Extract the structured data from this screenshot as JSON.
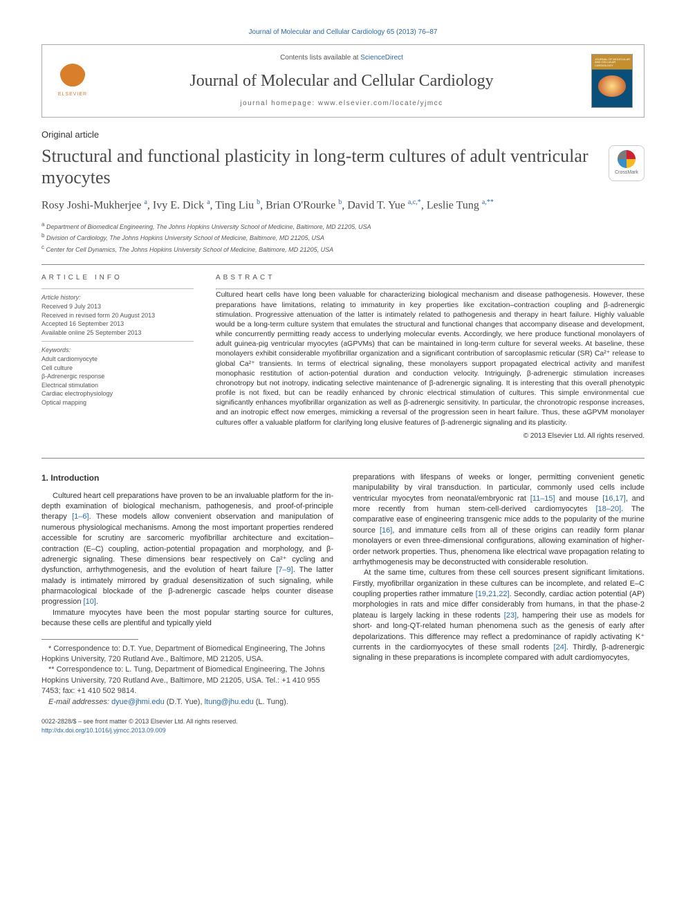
{
  "top_link": "Journal of Molecular and Cellular Cardiology 65 (2013) 76–87",
  "header": {
    "contents_prefix": "Contents lists available at ",
    "contents_site": "ScienceDirect",
    "journal_title": "Journal of Molecular and Cellular Cardiology",
    "homepage": "journal homepage: www.elsevier.com/locate/yjmcc",
    "elsevier": "ELSEVIER",
    "cover_label": "JOURNAL OF MOLECULAR AND CELLULAR CARDIOLOGY"
  },
  "article_type": "Original article",
  "title": "Structural and functional plasticity in long-term cultures of adult ventricular myocytes",
  "crossmark": "CrossMark",
  "authors_html": "Rosy Joshi-Mukherjee <sup>a</sup>, Ivy E. Dick <sup>a</sup>, Ting Liu <sup>b</sup>, Brian O'Rourke <sup>b</sup>, David T. Yue <sup>a,c,*</sup>, Leslie Tung <sup>a,**</sup>",
  "affiliations": [
    {
      "sup": "a",
      "text": "Department of Biomedical Engineering, The Johns Hopkins University School of Medicine, Baltimore, MD 21205, USA"
    },
    {
      "sup": "b",
      "text": "Division of Cardiology, The Johns Hopkins University School of Medicine, Baltimore, MD 21205, USA"
    },
    {
      "sup": "c",
      "text": "Center for Cell Dynamics, The Johns Hopkins University School of Medicine, Baltimore, MD 21205, USA"
    }
  ],
  "info": {
    "label": "ARTICLE INFO",
    "history_label": "Article history:",
    "received": "Received 9 July 2013",
    "revised": "Received in revised form 20 August 2013",
    "accepted": "Accepted 16 September 2013",
    "online": "Available online 25 September 2013",
    "keywords_label": "Keywords:",
    "keywords": [
      "Adult cardiomyocyte",
      "Cell culture",
      "β-Adrenergic response",
      "Electrical stimulation",
      "Cardiac electrophysiology",
      "Optical mapping"
    ]
  },
  "abstract": {
    "label": "ABSTRACT",
    "text": "Cultured heart cells have long been valuable for characterizing biological mechanism and disease pathogenesis. However, these preparations have limitations, relating to immaturity in key properties like excitation–contraction coupling and β-adrenergic stimulation. Progressive attenuation of the latter is intimately related to pathogenesis and therapy in heart failure. Highly valuable would be a long-term culture system that emulates the structural and functional changes that accompany disease and development, while concurrently permitting ready access to underlying molecular events. Accordingly, we here produce functional monolayers of adult guinea-pig ventricular myocytes (aGPVMs) that can be maintained in long-term culture for several weeks. At baseline, these monolayers exhibit considerable myofibrillar organization and a significant contribution of sarcoplasmic reticular (SR) Ca²⁺ release to global Ca²⁺ transients. In terms of electrical signaling, these monolayers support propagated electrical activity and manifest monophasic restitution of action-potential duration and conduction velocity. Intriguingly, β-adrenergic stimulation increases chronotropy but not inotropy, indicating selective maintenance of β-adrenergic signaling. It is interesting that this overall phenotypic profile is not fixed, but can be readily enhanced by chronic electrical stimulation of cultures. This simple environmental cue significantly enhances myofibrillar organization as well as β-adrenergic sensitivity. In particular, the chronotropic response increases, and an inotropic effect now emerges, mimicking a reversal of the progression seen in heart failure. Thus, these aGPVM monolayer cultures offer a valuable platform for clarifying long elusive features of β-adrenergic signaling and its plasticity.",
    "copyright": "© 2013 Elsevier Ltd. All rights reserved."
  },
  "intro_heading": "1. Introduction",
  "intro": {
    "p1_a": "Cultured heart cell preparations have proven to be an invaluable platform for the in-depth examination of biological mechanism, pathogenesis, and proof-of-principle therapy ",
    "p1_ref1": "[1–6]",
    "p1_b": ". These models allow convenient observation and manipulation of numerous physiological mechanisms. Among the most important properties rendered accessible for scrutiny are sarcomeric myofibrillar architecture and excitation–contraction (E–C) coupling, action-potential propagation and morphology, and β-adrenergic signaling. These dimensions bear respectively on Ca²⁺ cycling and dysfunction, arrhythmogenesis, and the evolution of heart failure ",
    "p1_ref2": "[7–9]",
    "p1_c": ". The latter malady is intimately mirrored by gradual desensitization of such signaling, while pharmacological blockade of the β-adrenergic cascade helps counter disease progression ",
    "p1_ref3": "[10]",
    "p1_d": ".",
    "p2": "Immature myocytes have been the most popular starting source for cultures, because these cells are plentiful and typically yield",
    "p3_a": "preparations with lifespans of weeks or longer, permitting convenient genetic manipulability by viral transduction. In particular, commonly used cells include ventricular myocytes from neonatal/embryonic rat ",
    "p3_ref1": "[11–15]",
    "p3_b": " and mouse ",
    "p3_ref2": "[16,17]",
    "p3_c": ", and more recently from human stem-cell-derived cardiomyocytes ",
    "p3_ref3": "[18–20]",
    "p3_d": ". The comparative ease of engineering transgenic mice adds to the popularity of the murine source ",
    "p3_ref4": "[16]",
    "p3_e": ", and immature cells from all of these origins can readily form planar monolayers or even three-dimensional configurations, allowing examination of higher-order network properties. Thus, phenomena like electrical wave propagation relating to arrhythmogenesis may be deconstructed with considerable resolution.",
    "p4_a": "At the same time, cultures from these cell sources present significant limitations. Firstly, myofibrillar organization in these cultures can be incomplete, and related E–C coupling properties rather immature ",
    "p4_ref1": "[19,21,22]",
    "p4_b": ". Secondly, cardiac action potential (AP) morphologies in rats and mice differ considerably from humans, in that the phase-2 plateau is largely lacking in these rodents ",
    "p4_ref2": "[23]",
    "p4_c": ", hampering their use as models for short- and long-QT-related human phenomena such as the genesis of early after depolarizations. This difference may reflect a predominance of rapidly activating K⁺ currents in the cardiomyocytes of these small rodents ",
    "p4_ref3": "[24]",
    "p4_d": ". Thirdly, β-adrenergic signaling in these preparations is incomplete compared with adult cardiomyocytes,"
  },
  "footnotes": {
    "c1": "* Correspondence to: D.T. Yue, Department of Biomedical Engineering, The Johns Hopkins University, 720 Rutland Ave., Baltimore, MD 21205, USA.",
    "c2": "** Correspondence to: L. Tung, Department of Biomedical Engineering, The Johns Hopkins University, 720 Rutland Ave., Baltimore, MD 21205, USA. Tel.: +1 410 955 7453; fax: +1 410 502 9814.",
    "email_label": "E-mail addresses: ",
    "email1": "dyue@jhmi.edu",
    "email1_who": " (D.T. Yue), ",
    "email2": "ltung@jhu.edu",
    "email2_who": " (L. Tung)."
  },
  "bottom": {
    "left1": "0022-2828/$ – see front matter © 2013 Elsevier Ltd. All rights reserved.",
    "doi": "http://dx.doi.org/10.1016/j.yjmcc.2013.09.009"
  },
  "colors": {
    "link": "#2968a8",
    "text": "#333333",
    "rule": "#888888",
    "elsevier_orange": "#d97e2a"
  },
  "typography": {
    "body_font": "Arial",
    "serif_font": "Times New Roman",
    "journal_title_pt": 24,
    "article_title_pt": 26,
    "authors_pt": 16,
    "abstract_pt": 10.5,
    "body_pt": 11,
    "footnote_pt": 9
  }
}
